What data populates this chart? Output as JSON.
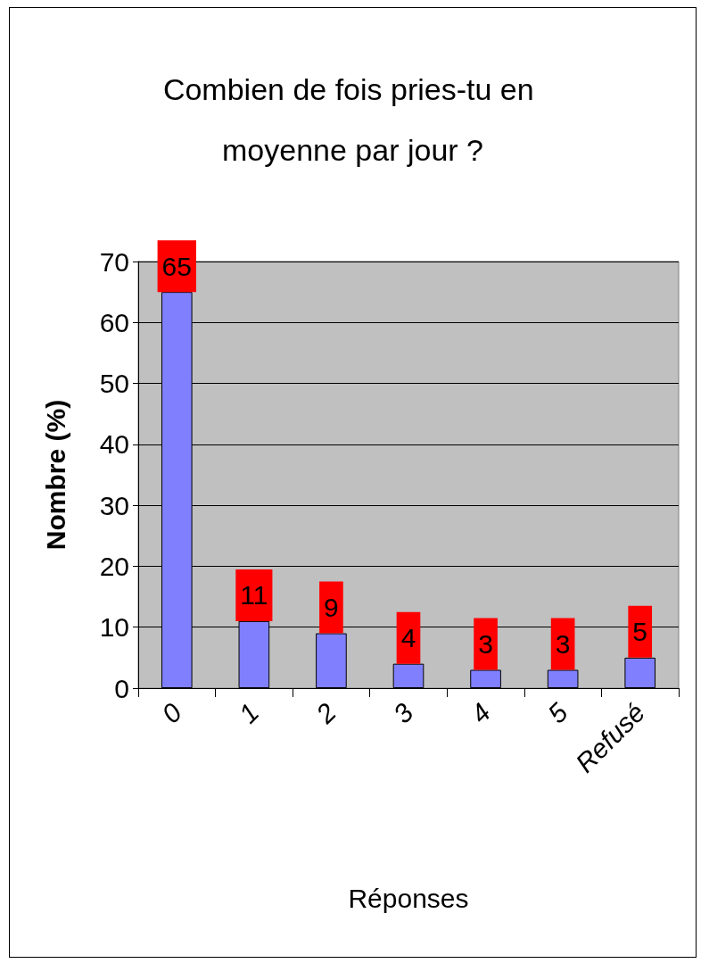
{
  "chart_data": {
    "type": "bar",
    "title": "Combien de fois pries-tu en moyenne par jour ?",
    "xlabel": "Réponses",
    "ylabel": "Nombre (%)",
    "categories": [
      "0",
      "1",
      "2",
      "3",
      "4",
      "5",
      "Refusé"
    ],
    "values": [
      65,
      11,
      9,
      4,
      3,
      3,
      5
    ],
    "color": "#8080ff",
    "ylim": [
      0,
      70
    ],
    "yticks": [
      0,
      10,
      20,
      30,
      40,
      50,
      60,
      70
    ],
    "grid": "y",
    "data_labels": true
  }
}
